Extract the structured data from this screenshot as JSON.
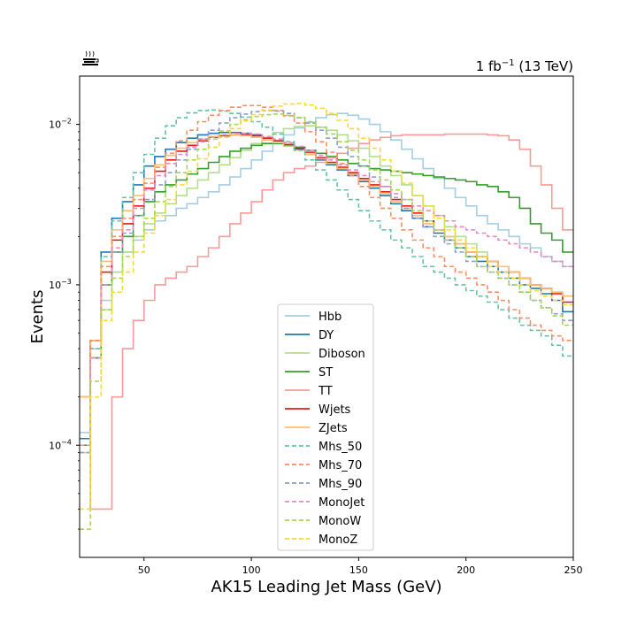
{
  "chart_data": {
    "type": "line",
    "style": "step-histogram",
    "lumi_label": {
      "prefix": "1 fb",
      "exponent": "−1",
      "suffix": " (13 TeV)"
    },
    "xlabel": "AK15 Leading Jet Mass (GeV)",
    "ylabel": "Events",
    "xlim": [
      20,
      250
    ],
    "ylim": [
      2e-05,
      0.02
    ],
    "yscale": "log",
    "x_ticks": [
      {
        "value": 50,
        "label": "50"
      },
      {
        "value": 100,
        "label": "100"
      },
      {
        "value": 150,
        "label": "150"
      },
      {
        "value": 200,
        "label": "200"
      },
      {
        "value": 250,
        "label": "250"
      }
    ],
    "y_ticks": [
      {
        "value": 0.0001,
        "base": "10",
        "exp": "−4"
      },
      {
        "value": 0.001,
        "base": "10",
        "exp": "−3"
      },
      {
        "value": 0.01,
        "base": "10",
        "exp": "−2"
      }
    ],
    "legend_position": "lower-center",
    "bin_edges": [
      20,
      25,
      30,
      35,
      40,
      45,
      50,
      55,
      60,
      65,
      70,
      75,
      80,
      85,
      90,
      95,
      100,
      105,
      110,
      115,
      120,
      125,
      130,
      135,
      140,
      145,
      150,
      155,
      160,
      165,
      170,
      175,
      180,
      185,
      190,
      195,
      200,
      205,
      210,
      215,
      220,
      225,
      230,
      235,
      240,
      245,
      250
    ],
    "series": [
      {
        "name": "Hbb",
        "color": "#a6cee3",
        "dash": false,
        "values": [
          0.00012,
          0.0004,
          0.0008,
          0.0012,
          0.0016,
          0.0019,
          0.0022,
          0.0025,
          0.0027,
          0.003,
          0.0032,
          0.0035,
          0.0038,
          0.0042,
          0.0047,
          0.0053,
          0.006,
          0.0068,
          0.0077,
          0.0086,
          0.0095,
          0.0103,
          0.011,
          0.0115,
          0.0117,
          0.0114,
          0.0108,
          0.01,
          0.009,
          0.008,
          0.007,
          0.0061,
          0.0053,
          0.0046,
          0.004,
          0.0035,
          0.0031,
          0.0027,
          0.0024,
          0.0022,
          0.002,
          0.0018,
          0.0017,
          0.0015,
          0.0014,
          0.0013
        ]
      },
      {
        "name": "DY",
        "color": "#1f78b4",
        "dash": false,
        "values": [
          0.00011,
          0.00045,
          0.0016,
          0.0026,
          0.0033,
          0.0042,
          0.0055,
          0.0063,
          0.007,
          0.0077,
          0.0082,
          0.0086,
          0.0088,
          0.0089,
          0.0089,
          0.0088,
          0.0086,
          0.0083,
          0.0079,
          0.0075,
          0.007,
          0.0065,
          0.006,
          0.0056,
          0.0052,
          0.0048,
          0.0044,
          0.004,
          0.0036,
          0.0032,
          0.0029,
          0.0026,
          0.0023,
          0.0021,
          0.0019,
          0.0017,
          0.0015,
          0.0014,
          0.0013,
          0.0012,
          0.0011,
          0.001,
          0.00095,
          0.00088,
          0.0008,
          0.00068
        ]
      },
      {
        "name": "Diboson",
        "color": "#b2df8a",
        "dash": false,
        "values": [
          9e-05,
          0.00035,
          0.0007,
          0.0012,
          0.0016,
          0.002,
          0.0024,
          0.0028,
          0.0032,
          0.0036,
          0.004,
          0.0045,
          0.005,
          0.0056,
          0.0062,
          0.0069,
          0.0076,
          0.0083,
          0.0089,
          0.0094,
          0.0097,
          0.0098,
          0.0096,
          0.0092,
          0.0086,
          0.0079,
          0.0071,
          0.0063,
          0.0055,
          0.0048,
          0.0042,
          0.0036,
          0.0031,
          0.0027,
          0.0023,
          0.002,
          0.0018,
          0.0016,
          0.0014,
          0.0013,
          0.0012,
          0.0011,
          0.001,
          0.00095,
          0.0009,
          0.00085
        ]
      },
      {
        "name": "ST",
        "color": "#33a02c",
        "dash": false,
        "values": [
          0.0001,
          0.00035,
          0.001,
          0.0016,
          0.002,
          0.0027,
          0.0033,
          0.0038,
          0.0042,
          0.0045,
          0.0049,
          0.0053,
          0.0058,
          0.0063,
          0.0068,
          0.0071,
          0.0074,
          0.0076,
          0.0076,
          0.0074,
          0.0072,
          0.0069,
          0.0066,
          0.0063,
          0.006,
          0.0057,
          0.0055,
          0.0053,
          0.0052,
          0.0051,
          0.005,
          0.0049,
          0.0048,
          0.0047,
          0.0046,
          0.0045,
          0.0044,
          0.0042,
          0.0041,
          0.0038,
          0.0035,
          0.003,
          0.0024,
          0.0021,
          0.0019,
          0.0016
        ]
      },
      {
        "name": "TT",
        "color": "#fb9a99",
        "dash": false,
        "values": [
          0.0002,
          4e-05,
          4e-05,
          0.0002,
          0.0004,
          0.0006,
          0.0008,
          0.001,
          0.0011,
          0.0012,
          0.0013,
          0.0015,
          0.0017,
          0.002,
          0.0024,
          0.0028,
          0.0033,
          0.0039,
          0.0045,
          0.005,
          0.0053,
          0.0055,
          0.0058,
          0.0062,
          0.0066,
          0.0071,
          0.0076,
          0.008,
          0.0083,
          0.0085,
          0.0086,
          0.0086,
          0.0086,
          0.0086,
          0.0087,
          0.0087,
          0.0087,
          0.0087,
          0.0086,
          0.0085,
          0.008,
          0.007,
          0.0055,
          0.0042,
          0.003,
          0.0022
        ]
      },
      {
        "name": "Wjets",
        "color": "#e31a1c",
        "dash": false,
        "values": [
          0.0002,
          0.00045,
          0.0012,
          0.0019,
          0.0024,
          0.0031,
          0.004,
          0.0051,
          0.006,
          0.0068,
          0.0074,
          0.0079,
          0.0083,
          0.0085,
          0.0086,
          0.0086,
          0.0085,
          0.0082,
          0.0079,
          0.0075,
          0.0071,
          0.0067,
          0.0062,
          0.0058,
          0.0054,
          0.005,
          0.0046,
          0.0042,
          0.0038,
          0.0034,
          0.0031,
          0.0028,
          0.0025,
          0.0022,
          0.002,
          0.0018,
          0.0016,
          0.0015,
          0.0014,
          0.0013,
          0.0012,
          0.0011,
          0.001,
          0.00095,
          0.00088,
          0.00078
        ]
      },
      {
        "name": "ZJets",
        "color": "#fdbf6f",
        "dash": false,
        "values": [
          0.0002,
          0.00045,
          0.0014,
          0.0022,
          0.0029,
          0.0036,
          0.0046,
          0.0056,
          0.0064,
          0.0071,
          0.0077,
          0.0081,
          0.0084,
          0.0086,
          0.0086,
          0.0085,
          0.0083,
          0.008,
          0.0077,
          0.0073,
          0.0069,
          0.0065,
          0.0061,
          0.0057,
          0.0053,
          0.0049,
          0.0045,
          0.0041,
          0.0037,
          0.0033,
          0.003,
          0.0027,
          0.0024,
          0.0022,
          0.002,
          0.0018,
          0.0016,
          0.0015,
          0.0014,
          0.0013,
          0.0012,
          0.0011,
          0.001,
          0.00095,
          0.0009,
          0.00085
        ]
      },
      {
        "name": "Mhs_50",
        "color": "#66c2a5",
        "dash": true,
        "values": [
          0.0001,
          0.0004,
          0.0015,
          0.0025,
          0.0035,
          0.005,
          0.0065,
          0.0082,
          0.0098,
          0.011,
          0.0118,
          0.0122,
          0.0123,
          0.0121,
          0.0117,
          0.0111,
          0.0104,
          0.0096,
          0.0087,
          0.0078,
          0.0069,
          0.006,
          0.0052,
          0.0045,
          0.0039,
          0.0034,
          0.0029,
          0.0025,
          0.0022,
          0.0019,
          0.0017,
          0.0015,
          0.0013,
          0.0012,
          0.0011,
          0.001,
          0.00092,
          0.00085,
          0.00078,
          0.0007,
          0.00062,
          0.00056,
          0.00052,
          0.00048,
          0.00042,
          0.00036
        ]
      },
      {
        "name": "Mhs_70",
        "color": "#fc8d62",
        "dash": true,
        "values": [
          0.0001,
          0.00045,
          0.0013,
          0.002,
          0.0026,
          0.0034,
          0.0043,
          0.0054,
          0.0066,
          0.0079,
          0.0092,
          0.0104,
          0.0114,
          0.0122,
          0.0128,
          0.0131,
          0.0131,
          0.0128,
          0.0122,
          0.0113,
          0.0102,
          0.009,
          0.0078,
          0.0067,
          0.0057,
          0.0048,
          0.0041,
          0.0035,
          0.003,
          0.0026,
          0.0022,
          0.0019,
          0.0017,
          0.0015,
          0.0013,
          0.0012,
          0.0011,
          0.001,
          0.0009,
          0.0008,
          0.0007,
          0.00062,
          0.00056,
          0.00052,
          0.00048,
          0.00045
        ]
      },
      {
        "name": "Mhs_90",
        "color": "#8da0cb",
        "dash": true,
        "values": [
          9e-05,
          0.00035,
          0.001,
          0.0016,
          0.0021,
          0.0027,
          0.0034,
          0.0042,
          0.005,
          0.006,
          0.007,
          0.0081,
          0.0092,
          0.0102,
          0.011,
          0.0116,
          0.012,
          0.0122,
          0.0121,
          0.0117,
          0.011,
          0.0102,
          0.0092,
          0.0082,
          0.0072,
          0.0063,
          0.0055,
          0.0047,
          0.0041,
          0.0035,
          0.003,
          0.0026,
          0.0023,
          0.002,
          0.0018,
          0.0016,
          0.0014,
          0.0013,
          0.0012,
          0.0011,
          0.001,
          0.0009,
          0.0008,
          0.00072,
          0.00066,
          0.0006
        ]
      },
      {
        "name": "MonoJet",
        "color": "#e78ac3",
        "dash": true,
        "values": [
          0.0001,
          0.00035,
          0.001,
          0.0017,
          0.0022,
          0.003,
          0.0039,
          0.0048,
          0.0057,
          0.0065,
          0.0072,
          0.0078,
          0.0083,
          0.0086,
          0.0088,
          0.0088,
          0.0087,
          0.0084,
          0.0081,
          0.0077,
          0.0073,
          0.0069,
          0.0064,
          0.006,
          0.0056,
          0.0052,
          0.0048,
          0.0044,
          0.0041,
          0.0037,
          0.0034,
          0.0031,
          0.0029,
          0.0027,
          0.0025,
          0.0023,
          0.0022,
          0.0021,
          0.002,
          0.0019,
          0.0018,
          0.0017,
          0.0016,
          0.0015,
          0.0014,
          0.0013
        ]
      },
      {
        "name": "MonoW",
        "color": "#a6d854",
        "dash": true,
        "values": [
          3e-05,
          0.00025,
          0.0007,
          0.0011,
          0.0015,
          0.002,
          0.0026,
          0.0033,
          0.0041,
          0.005,
          0.006,
          0.007,
          0.0081,
          0.0091,
          0.01,
          0.0107,
          0.0112,
          0.0115,
          0.0116,
          0.0114,
          0.011,
          0.0104,
          0.0096,
          0.0087,
          0.0078,
          0.0069,
          0.006,
          0.0052,
          0.0045,
          0.0039,
          0.0034,
          0.0029,
          0.0025,
          0.0022,
          0.0019,
          0.0017,
          0.0015,
          0.0013,
          0.0012,
          0.0011,
          0.001,
          0.0009,
          0.0008,
          0.00072,
          0.00064,
          0.00056
        ]
      },
      {
        "name": "MonoZ",
        "color": "#ffd92f",
        "dash": true,
        "values": [
          4e-05,
          0.0002,
          0.0006,
          0.0009,
          0.0012,
          0.0016,
          0.0021,
          0.0027,
          0.0034,
          0.0042,
          0.0051,
          0.0061,
          0.0072,
          0.0083,
          0.0094,
          0.0105,
          0.0115,
          0.0123,
          0.013,
          0.0134,
          0.0135,
          0.0132,
          0.0126,
          0.0117,
          0.0106,
          0.0094,
          0.0082,
          0.0071,
          0.006,
          0.0051,
          0.0043,
          0.0036,
          0.0031,
          0.0026,
          0.0022,
          0.0019,
          0.0017,
          0.0015,
          0.0013,
          0.0012,
          0.0011,
          0.001,
          0.00092,
          0.00085,
          0.0008,
          0.00075
        ]
      }
    ]
  }
}
